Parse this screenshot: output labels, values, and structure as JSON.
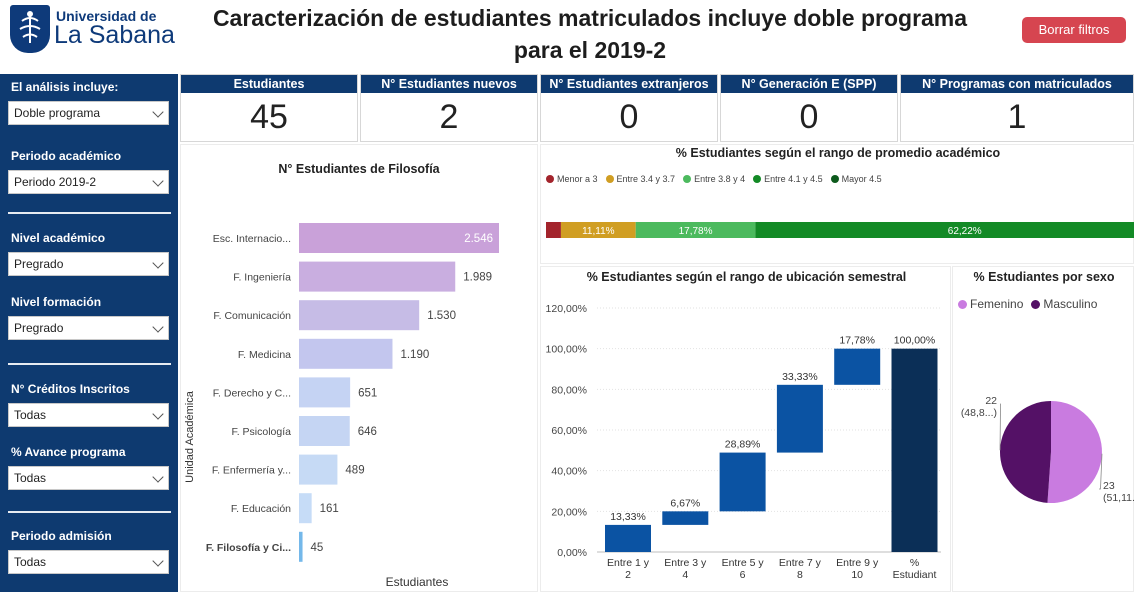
{
  "header": {
    "logo": {
      "line1": "Universidad de",
      "line2": "La Sabana"
    },
    "title_line1": "Caracterización de estudiantes matriculados incluye doble programa",
    "title_line2": "para el 2019-2",
    "clear_button": "Borrar filtros"
  },
  "filters": [
    {
      "label": "El análisis incluye:",
      "value": "Doble programa"
    },
    {
      "label": "Periodo académico",
      "value": "Periodo 2019-2"
    },
    {
      "label": "Nivel académico",
      "value": "Pregrado"
    },
    {
      "label": "Nivel formación",
      "value": "Pregrado"
    },
    {
      "label": "N° Créditos Inscritos",
      "value": "Todas"
    },
    {
      "label": "% Avance programa",
      "value": "Todas"
    },
    {
      "label": "Periodo admisión",
      "value": "Todas"
    }
  ],
  "kpis": [
    {
      "label": "Estudiantes",
      "value": "45"
    },
    {
      "label": "N° Estudiantes nuevos",
      "value": "2"
    },
    {
      "label": "N° Estudiantes extranjeros",
      "value": "0"
    },
    {
      "label": "N° Generación E (SPP)",
      "value": "0"
    },
    {
      "label": "N° Programas con matriculados",
      "value": "1"
    }
  ],
  "colors": {
    "navy": "#0e3a70",
    "clear_button": "#d64550"
  },
  "chart_data": [
    {
      "type": "bar",
      "orientation": "horizontal",
      "title": "N° Estudiantes de Filosofía",
      "xlabel": "Estudiantes",
      "ylabel": "Unidad Académica",
      "categories": [
        "Esc. Internacio...",
        "F. Ingeniería",
        "F. Comunicación",
        "F. Medicina",
        "F. Derecho y C...",
        "F. Psicología",
        "F. Enfermería y...",
        "F. Educación",
        "F. Filosofía y Ci..."
      ],
      "values": [
        2546,
        1989,
        1530,
        1190,
        651,
        646,
        489,
        161,
        45
      ],
      "labels": [
        "2.546",
        "1.989",
        "1.530",
        "1.190",
        "651",
        "646",
        "489",
        "161",
        "45"
      ],
      "colors": [
        "#c9a1d9",
        "#c9aee0",
        "#c6bce6",
        "#c3c6ee",
        "#c5d3f3",
        "#c5d5f3",
        "#c6daf5",
        "#c6dcf7",
        "#74b8ea"
      ],
      "highlight_category": "F. Filosofía y Ci..."
    },
    {
      "type": "bar",
      "orientation": "stacked-100",
      "title": "% Estudiantes según el rango de promedio académico",
      "series": [
        {
          "name": "Menor a 3",
          "value": 2.22,
          "label": "",
          "color": "#a3242c"
        },
        {
          "name": "Entre 3.4 y 3.7",
          "value": 11.11,
          "label": "11,11%",
          "color": "#d09e23"
        },
        {
          "name": "Entre 3.8 y 4",
          "value": 17.78,
          "label": "17,78%",
          "color": "#4cba5e"
        },
        {
          "name": "Entre 4.1 y 4.5",
          "value": 62.22,
          "label": "62,22%",
          "color": "#138a26"
        },
        {
          "name": "Mayor 4.5",
          "value": 6.67,
          "label": "6,67%",
          "color": "#0d5a1c"
        }
      ]
    },
    {
      "type": "bar",
      "orientation": "waterfall",
      "title": "% Estudiantes según el rango de ubicación semestral",
      "categories": [
        "Entre 1 y 2",
        "Entre 3 y 4",
        "Entre 5 y 6",
        "Entre 7 y 8",
        "Entre 9 y 10",
        "% Estudiant"
      ],
      "values": [
        13.33,
        6.67,
        28.89,
        33.33,
        17.78,
        100.0
      ],
      "labels": [
        "13,33%",
        "6,67%",
        "28,89%",
        "33,33%",
        "17,78%",
        "100,00%"
      ],
      "ylim": [
        0,
        120
      ],
      "yticks": [
        "0,00%",
        "20,00%",
        "40,00%",
        "60,00%",
        "80,00%",
        "100,00%",
        "120,00%"
      ],
      "bar_color": "#0b53a3",
      "total_color": "#0b2f57",
      "grid": true
    },
    {
      "type": "pie",
      "title": "% Estudiantes por sexo",
      "legend_position": "top-left",
      "series": [
        {
          "name": "Femenino",
          "value": 23,
          "label": "23",
          "percent_label": "(51,11...",
          "color": "#c97be0"
        },
        {
          "name": "Masculino",
          "value": 22,
          "label": "22",
          "percent_label": "(48,8...)",
          "color": "#541166"
        }
      ]
    }
  ]
}
